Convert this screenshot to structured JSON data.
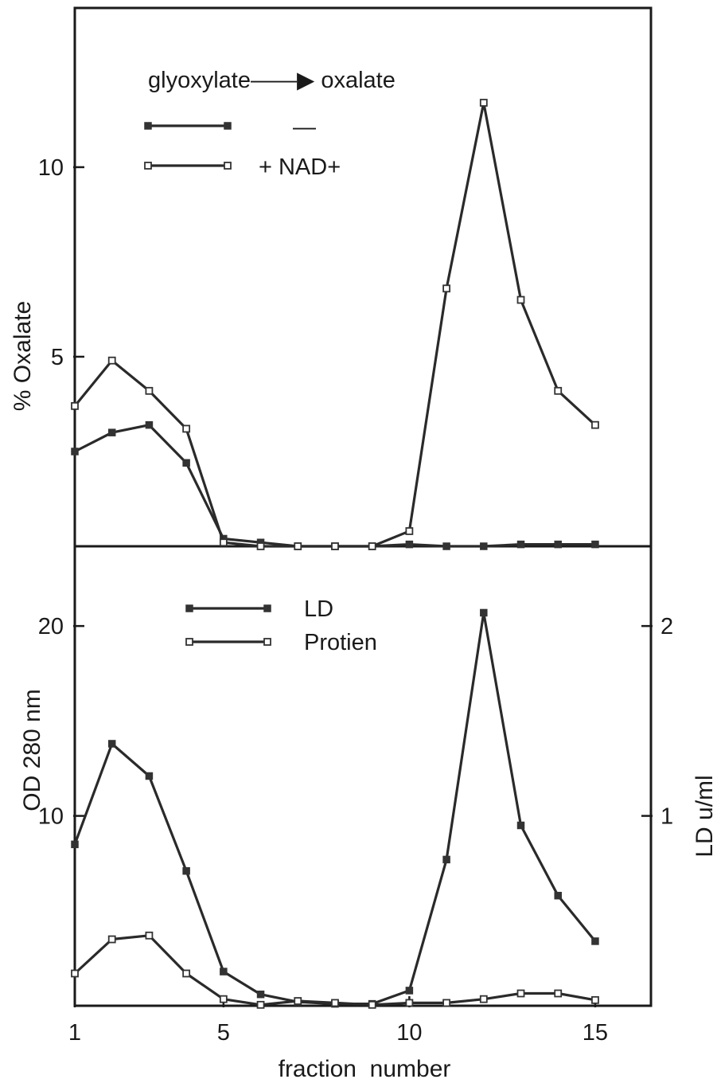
{
  "chart_data": [
    {
      "type": "line",
      "title": "",
      "xlabel": "",
      "ylabel": "% Oxalate",
      "xlim": [
        1,
        16.5
      ],
      "ylim": [
        0,
        14.2
      ],
      "y_ticks": [
        5,
        10
      ],
      "legend": {
        "heading": "glyoxylate——▶ oxalate",
        "placement": "top-left"
      },
      "series": [
        {
          "name": "—",
          "marker": "filled-square",
          "x": [
            1,
            2,
            3,
            4,
            5,
            6,
            7,
            8,
            9,
            10,
            11,
            12,
            13,
            14,
            15
          ],
          "y": [
            2.5,
            3.0,
            3.2,
            2.2,
            0.2,
            0.1,
            0.0,
            0.0,
            0.0,
            0.05,
            0.0,
            0.0,
            0.05,
            0.05,
            0.05
          ]
        },
        {
          "name": "+ NAD+",
          "marker": "open-square",
          "x": [
            1,
            2,
            3,
            4,
            5,
            6,
            7,
            8,
            9,
            10,
            11,
            12,
            13,
            14,
            15
          ],
          "y": [
            3.7,
            4.9,
            4.1,
            3.1,
            0.1,
            0.0,
            0.0,
            0.0,
            0.0,
            0.4,
            6.8,
            11.7,
            6.5,
            4.1,
            3.2
          ]
        }
      ]
    },
    {
      "type": "line",
      "title": "",
      "xlabel": "fraction  number",
      "ylabel": "OD 280 nm",
      "y2label": "LD  u/ml",
      "xlim": [
        1,
        16.5
      ],
      "ylim": [
        0,
        24.2
      ],
      "y2lim": [
        0,
        2.42
      ],
      "x_ticks": [
        1,
        5,
        10,
        15
      ],
      "y_ticks": [
        10,
        20
      ],
      "y2_ticks": [
        1,
        2
      ],
      "legend": {
        "placement": "top-center"
      },
      "series": [
        {
          "name": "LD",
          "marker": "filled-square",
          "axis": "right",
          "x": [
            1,
            2,
            3,
            4,
            5,
            6,
            7,
            8,
            9,
            10,
            11,
            12,
            13,
            14,
            15
          ],
          "y": [
            0.85,
            1.38,
            1.21,
            0.71,
            0.18,
            0.06,
            0.02,
            0.01,
            0.01,
            0.08,
            0.77,
            2.07,
            0.95,
            0.58,
            0.34
          ]
        },
        {
          "name": "Protien",
          "marker": "open-square",
          "axis": "left",
          "x": [
            1,
            2,
            3,
            4,
            5,
            6,
            7,
            8,
            9,
            10,
            11,
            12,
            13,
            14,
            15
          ],
          "y": [
            1.7,
            3.5,
            3.7,
            1.7,
            0.35,
            0.05,
            0.25,
            0.15,
            0.05,
            0.15,
            0.15,
            0.35,
            0.65,
            0.65,
            0.3
          ]
        }
      ]
    }
  ]
}
